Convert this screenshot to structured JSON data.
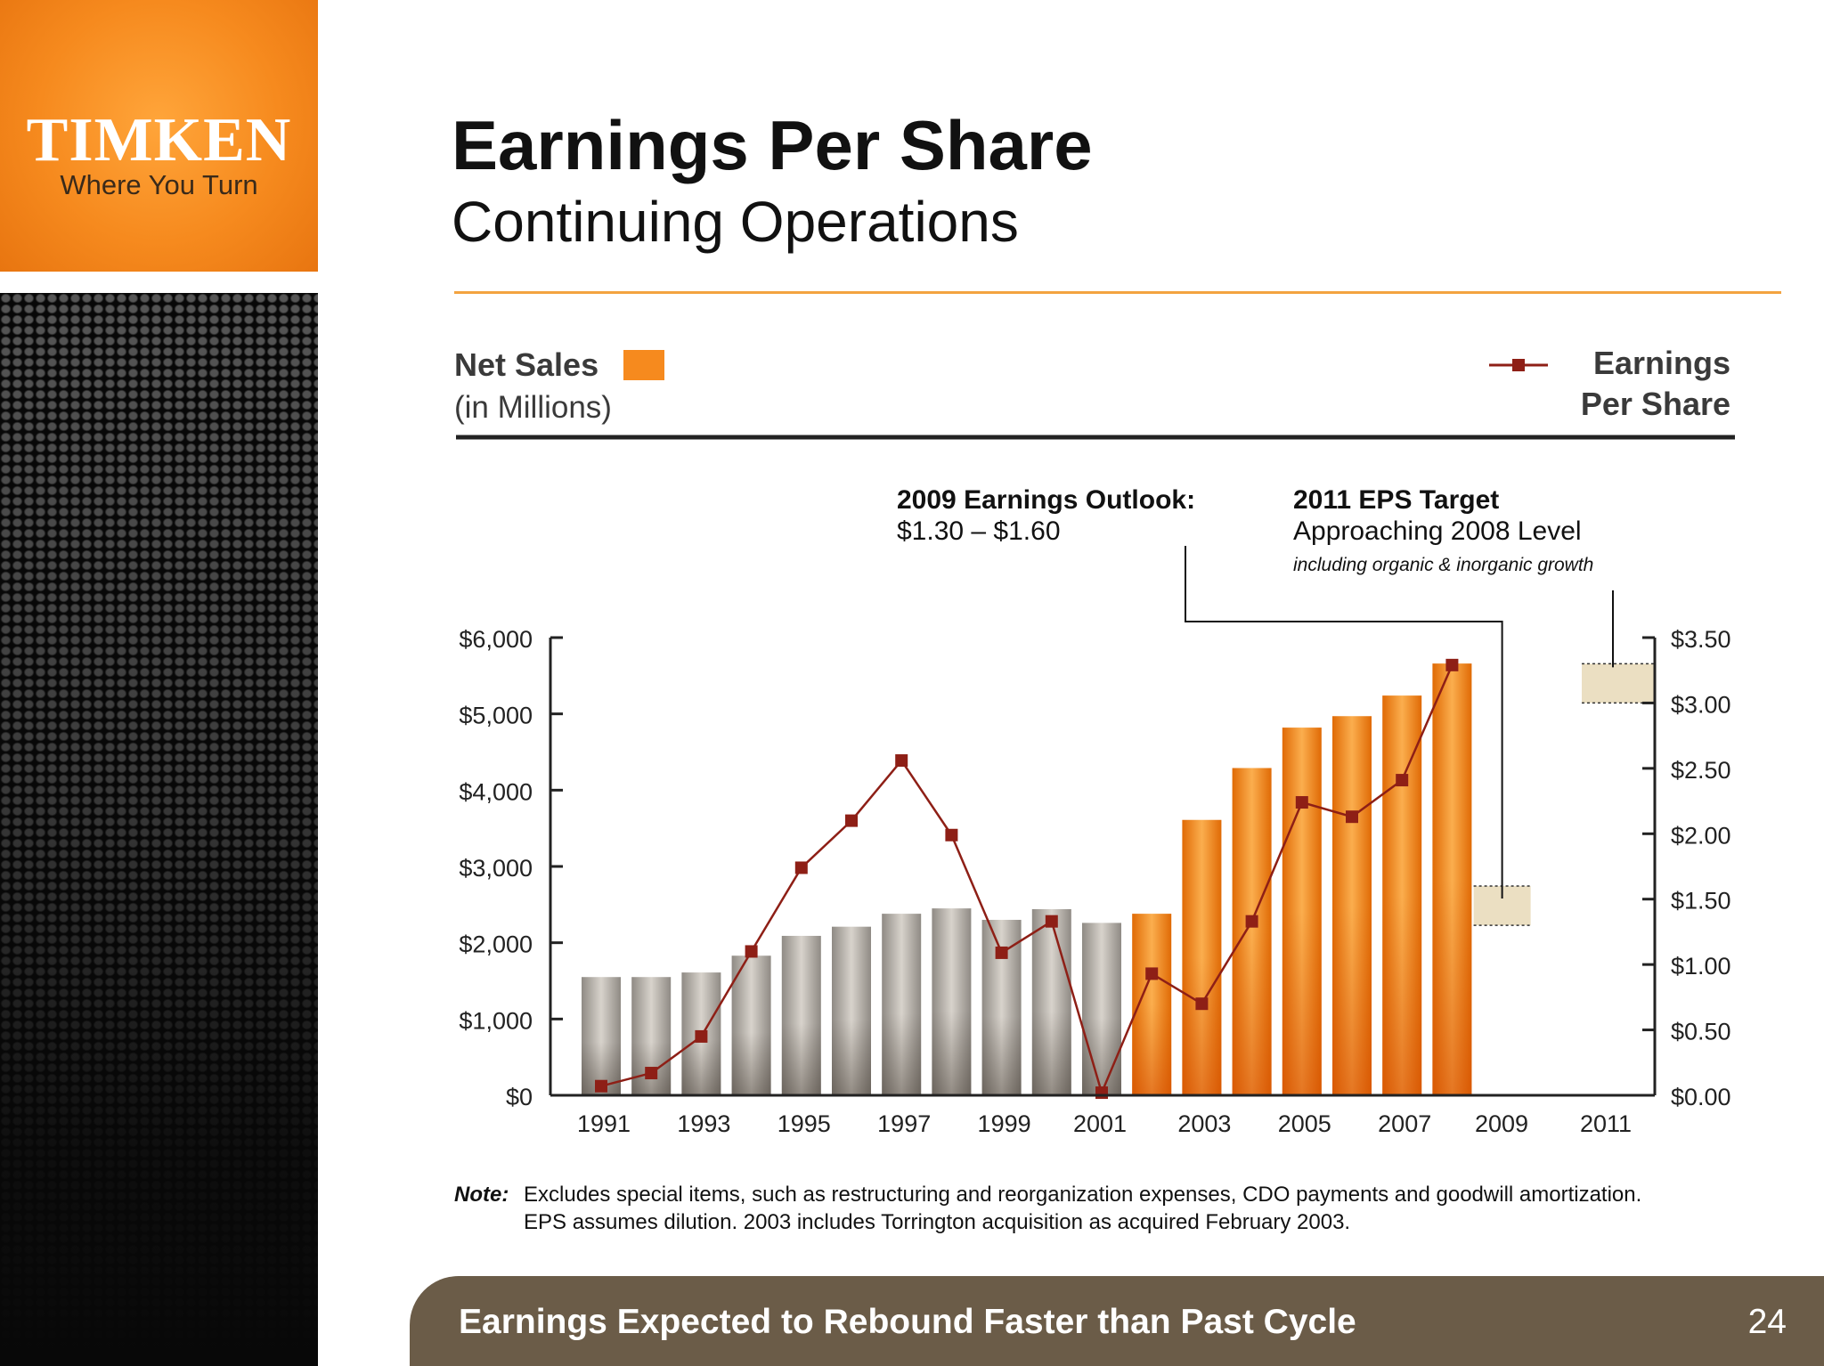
{
  "logo": {
    "brand": "TIMKEN",
    "tagline": "Where You Turn"
  },
  "slide": {
    "title": "Earnings Per Share",
    "subtitle": "Continuing Operations",
    "note_label": "Note:",
    "note_line1": "Excludes special items, such as restructuring and reorganization expenses, CDO payments and goodwill amortization.",
    "note_line2": "EPS assumes dilution.  2003 includes Torrington acquisition as acquired February 2003.",
    "footer": "Earnings Expected to Rebound Faster than Past Cycle",
    "page_number": "24"
  },
  "colors": {
    "orange": "#f68a1e",
    "gray_bar": "#b9b3aa",
    "eps_line": "#8e1f16",
    "outlook_box": "#ebdfc2"
  },
  "chart_data": {
    "type": "bar",
    "legend": {
      "bars_line1": "Net Sales",
      "bars_line2": "(in Millions)",
      "line_line1": "Earnings",
      "line_line2": "Per Share"
    },
    "x_ticks": [
      "1991",
      "1993",
      "1995",
      "1997",
      "1999",
      "2001",
      "2003",
      "2005",
      "2007",
      "2009",
      "2011"
    ],
    "y_left": {
      "ylim": [
        0,
        6000
      ],
      "tick_values": [
        0,
        1000,
        2000,
        3000,
        4000,
        5000,
        6000
      ],
      "tick_labels": [
        "$0",
        "$1,000",
        "$2,000",
        "$3,000",
        "$4,000",
        "$5,000",
        "$6,000"
      ]
    },
    "y_right": {
      "ylim": [
        0,
        3.5
      ],
      "tick_values": [
        0,
        0.5,
        1.0,
        1.5,
        2.0,
        2.5,
        3.0,
        3.5
      ],
      "tick_labels": [
        "$0.00",
        "$0.50",
        "$1.00",
        "$1.50",
        "$2.00",
        "$2.50",
        "$3.00",
        "$3.50"
      ]
    },
    "net_sales": [
      {
        "year": 1991,
        "value": 1550,
        "style": "gray"
      },
      {
        "year": 1992,
        "value": 1550,
        "style": "gray"
      },
      {
        "year": 1993,
        "value": 1610,
        "style": "gray"
      },
      {
        "year": 1994,
        "value": 1830,
        "style": "gray"
      },
      {
        "year": 1995,
        "value": 2090,
        "style": "gray"
      },
      {
        "year": 1996,
        "value": 2210,
        "style": "gray"
      },
      {
        "year": 1997,
        "value": 2380,
        "style": "gray"
      },
      {
        "year": 1998,
        "value": 2450,
        "style": "gray"
      },
      {
        "year": 1999,
        "value": 2300,
        "style": "gray"
      },
      {
        "year": 2000,
        "value": 2440,
        "style": "gray"
      },
      {
        "year": 2001,
        "value": 2260,
        "style": "gray"
      },
      {
        "year": 2002,
        "value": 2380,
        "style": "orange"
      },
      {
        "year": 2003,
        "value": 3610,
        "style": "orange"
      },
      {
        "year": 2004,
        "value": 4290,
        "style": "orange"
      },
      {
        "year": 2005,
        "value": 4820,
        "style": "orange"
      },
      {
        "year": 2006,
        "value": 4970,
        "style": "orange"
      },
      {
        "year": 2007,
        "value": 5240,
        "style": "orange"
      },
      {
        "year": 2008,
        "value": 5660,
        "style": "orange"
      }
    ],
    "eps": [
      {
        "year": 1991,
        "value": 0.07
      },
      {
        "year": 1992,
        "value": 0.17
      },
      {
        "year": 1993,
        "value": 0.45
      },
      {
        "year": 1994,
        "value": 1.1
      },
      {
        "year": 1995,
        "value": 1.74
      },
      {
        "year": 1996,
        "value": 2.1
      },
      {
        "year": 1997,
        "value": 2.56
      },
      {
        "year": 1998,
        "value": 1.99
      },
      {
        "year": 1999,
        "value": 1.09
      },
      {
        "year": 2000,
        "value": 1.33
      },
      {
        "year": 2001,
        "value": 0.02
      },
      {
        "year": 2002,
        "value": 0.93
      },
      {
        "year": 2003,
        "value": 0.7
      },
      {
        "year": 2004,
        "value": 1.33
      },
      {
        "year": 2005,
        "value": 2.24
      },
      {
        "year": 2006,
        "value": 2.13
      },
      {
        "year": 2007,
        "value": 2.41
      },
      {
        "year": 2008,
        "value": 3.29
      }
    ],
    "outlook_ranges": [
      {
        "year": 2009,
        "low": 1.3,
        "high": 1.6
      },
      {
        "year": 2011,
        "low": 3.0,
        "high": 3.3
      }
    ],
    "annotations": [
      {
        "title": "2009 Earnings Outlook:",
        "text": "$1.30 – $1.60",
        "subtext": ""
      },
      {
        "title": "2011 EPS Target",
        "text": "Approaching 2008 Level",
        "subtext": "including organic & inorganic growth"
      }
    ]
  }
}
